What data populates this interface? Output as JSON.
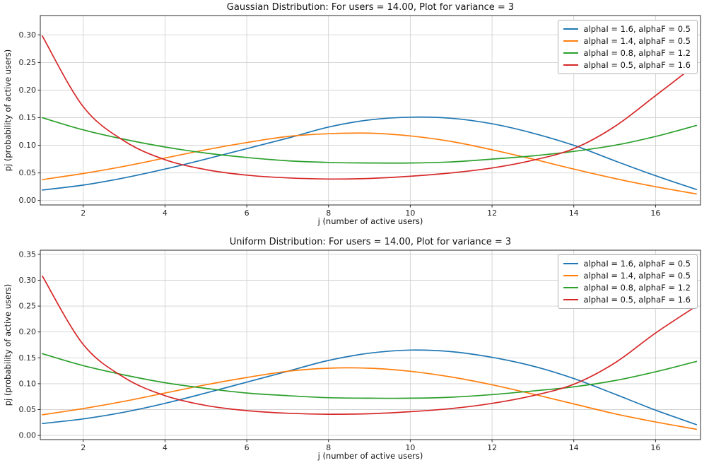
{
  "figure": {
    "background": "#ffffff"
  },
  "chart_data": [
    {
      "type": "line",
      "title": "Gaussian Distribution: For users = 14.00, Plot for variance = 3",
      "xlabel": "j (number of active users)",
      "ylabel": "pj (probability of active users)",
      "x": [
        1,
        2,
        3,
        4,
        5,
        6,
        7,
        8,
        9,
        10,
        11,
        12,
        13,
        14,
        15,
        16,
        17
      ],
      "xlim": [
        0.95,
        17.1
      ],
      "ylim": [
        -0.008,
        0.335
      ],
      "xticks": [
        2,
        4,
        6,
        8,
        10,
        12,
        14,
        16
      ],
      "yticks": [
        0.0,
        0.05,
        0.1,
        0.15,
        0.2,
        0.25,
        0.3
      ],
      "grid": true,
      "legend_position": "upper right",
      "series": [
        {
          "name": "alphaI = 1.6, alphaF = 0.5",
          "color": "#1f77b4",
          "values": [
            0.019,
            0.028,
            0.041,
            0.057,
            0.075,
            0.094,
            0.113,
            0.133,
            0.146,
            0.151,
            0.149,
            0.139,
            0.122,
            0.1,
            0.072,
            0.045,
            0.02
          ]
        },
        {
          "name": "alphaI = 1.4, alphaF = 0.5",
          "color": "#ff7f0e",
          "values": [
            0.038,
            0.049,
            0.062,
            0.077,
            0.092,
            0.105,
            0.116,
            0.121,
            0.122,
            0.117,
            0.107,
            0.092,
            0.075,
            0.057,
            0.04,
            0.025,
            0.012
          ]
        },
        {
          "name": "alphaI = 0.8, alphaF = 1.2",
          "color": "#2ca02c",
          "values": [
            0.15,
            0.128,
            0.111,
            0.097,
            0.086,
            0.078,
            0.072,
            0.069,
            0.068,
            0.068,
            0.07,
            0.075,
            0.081,
            0.089,
            0.1,
            0.116,
            0.136
          ]
        },
        {
          "name": "alphaI = 0.5, alphaF = 1.6",
          "color": "#d62728",
          "values": [
            0.298,
            0.17,
            0.108,
            0.074,
            0.056,
            0.046,
            0.041,
            0.039,
            0.04,
            0.044,
            0.05,
            0.059,
            0.073,
            0.094,
            0.134,
            0.19,
            0.247
          ]
        }
      ]
    },
    {
      "type": "line",
      "title": "Uniform Distribution: For users = 14.00, Plot for variance = 3",
      "xlabel": "j (number of active users)",
      "ylabel": "pj (probability of active users)",
      "x": [
        1,
        2,
        3,
        4,
        5,
        6,
        7,
        8,
        9,
        10,
        11,
        12,
        13,
        14,
        15,
        16,
        17
      ],
      "xlim": [
        0.95,
        17.1
      ],
      "ylim": [
        -0.008,
        0.358
      ],
      "xticks": [
        2,
        4,
        6,
        8,
        10,
        12,
        14,
        16
      ],
      "yticks": [
        0.0,
        0.05,
        0.1,
        0.15,
        0.2,
        0.25,
        0.3,
        0.35
      ],
      "grid": true,
      "legend_position": "upper right",
      "series": [
        {
          "name": "alphaI = 1.6, alphaF = 0.5",
          "color": "#1f77b4",
          "values": [
            0.023,
            0.032,
            0.045,
            0.062,
            0.082,
            0.103,
            0.124,
            0.145,
            0.159,
            0.165,
            0.162,
            0.151,
            0.134,
            0.11,
            0.08,
            0.049,
            0.021
          ]
        },
        {
          "name": "alphaI = 1.4, alphaF = 0.5",
          "color": "#ff7f0e",
          "values": [
            0.04,
            0.052,
            0.066,
            0.082,
            0.098,
            0.112,
            0.124,
            0.13,
            0.13,
            0.124,
            0.113,
            0.098,
            0.08,
            0.061,
            0.042,
            0.026,
            0.012
          ]
        },
        {
          "name": "alphaI = 0.8, alphaF = 1.2",
          "color": "#2ca02c",
          "values": [
            0.158,
            0.135,
            0.117,
            0.102,
            0.091,
            0.082,
            0.077,
            0.073,
            0.072,
            0.072,
            0.074,
            0.079,
            0.086,
            0.094,
            0.106,
            0.123,
            0.143
          ]
        },
        {
          "name": "alphaI = 0.5, alphaF = 1.6",
          "color": "#d62728",
          "values": [
            0.308,
            0.176,
            0.112,
            0.077,
            0.058,
            0.048,
            0.043,
            0.041,
            0.042,
            0.046,
            0.052,
            0.062,
            0.077,
            0.099,
            0.14,
            0.198,
            0.25
          ]
        }
      ]
    }
  ]
}
